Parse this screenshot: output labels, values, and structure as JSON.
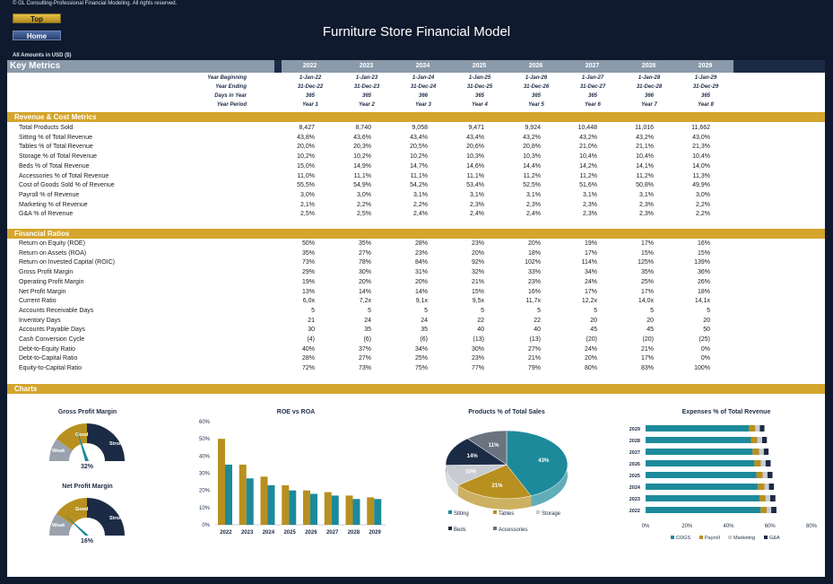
{
  "header": {
    "copyright": "© GL Consulting-Professional Financial Modeling. All rights reserved.",
    "top_button": "Top",
    "home_button": "Home",
    "title": "Furniture Store Financial Model",
    "amounts_note": "All Amounts in  USD ($)"
  },
  "key_metrics": {
    "label": "Key Metrics",
    "years": [
      "2022",
      "2023",
      "2024",
      "2025",
      "2026",
      "2027",
      "2028",
      "2029"
    ],
    "period_rows": [
      {
        "label": "Year Beginning",
        "values": [
          "1-Jan-22",
          "1-Jan-23",
          "1-Jan-24",
          "1-Jan-25",
          "1-Jan-26",
          "1-Jan-27",
          "1-Jan-28",
          "1-Jan-29"
        ]
      },
      {
        "label": "Year Ending",
        "values": [
          "31-Dec-22",
          "31-Dec-23",
          "31-Dec-24",
          "31-Dec-25",
          "31-Dec-26",
          "31-Dec-27",
          "31-Dec-28",
          "31-Dec-29"
        ]
      },
      {
        "label": "Days in Year",
        "values": [
          "365",
          "365",
          "366",
          "365",
          "365",
          "365",
          "366",
          "365"
        ]
      },
      {
        "label": "Year Period",
        "values": [
          "Year 1",
          "Year 2",
          "Year 3",
          "Year 4",
          "Year 5",
          "Year 6",
          "Year 7",
          "Year 8"
        ]
      }
    ]
  },
  "revenue": {
    "label": "Revenue & Cost Metrics",
    "rows": [
      {
        "label": "Total Products Sold",
        "values": [
          "8,427",
          "8,740",
          "9,058",
          "9,471",
          "9,924",
          "10,448",
          "11,016",
          "11,662"
        ]
      },
      {
        "label": "Sitting % of Total Revenue",
        "values": [
          "43,8%",
          "43,6%",
          "43,4%",
          "43,4%",
          "43,2%",
          "43,2%",
          "43,2%",
          "43,0%"
        ]
      },
      {
        "label": "Tables % of Total Revenue",
        "values": [
          "20,0%",
          "20,3%",
          "20,5%",
          "20,6%",
          "20,8%",
          "21,0%",
          "21,1%",
          "21,3%"
        ]
      },
      {
        "label": "Storage % of Total Revenue",
        "values": [
          "10,2%",
          "10,2%",
          "10,2%",
          "10,3%",
          "10,3%",
          "10,4%",
          "10,4%",
          "10,4%"
        ]
      },
      {
        "label": "Beds % of Total Revenue",
        "values": [
          "15,0%",
          "14,9%",
          "14,7%",
          "14,6%",
          "14,4%",
          "14,2%",
          "14,1%",
          "14,0%"
        ]
      },
      {
        "label": "Accessories % of Total Revenue",
        "values": [
          "11,0%",
          "11,1%",
          "11,1%",
          "11,1%",
          "11,2%",
          "11,2%",
          "11,2%",
          "11,3%"
        ]
      },
      {
        "label": "Cost of Goods Sold % of Revenue",
        "values": [
          "55,5%",
          "54,9%",
          "54,2%",
          "53,4%",
          "52,5%",
          "51,6%",
          "50,8%",
          "49,9%"
        ]
      },
      {
        "label": "Payroll % of Revenue",
        "values": [
          "3,0%",
          "3,0%",
          "3,1%",
          "3,1%",
          "3,1%",
          "3,1%",
          "3,1%",
          "3,0%"
        ]
      },
      {
        "label": "Marketing % of Revenue",
        "values": [
          "2,1%",
          "2,2%",
          "2,2%",
          "2,3%",
          "2,3%",
          "2,3%",
          "2,3%",
          "2,2%"
        ]
      },
      {
        "label": "G&A % of Revenue",
        "values": [
          "2,5%",
          "2,5%",
          "2,4%",
          "2,4%",
          "2,4%",
          "2,3%",
          "2,3%",
          "2,2%"
        ]
      }
    ]
  },
  "ratios": {
    "label": "Financial Ratios",
    "rows": [
      {
        "label": "Return on Equity (ROE)",
        "values": [
          "50%",
          "35%",
          "28%",
          "23%",
          "20%",
          "19%",
          "17%",
          "16%"
        ]
      },
      {
        "label": "Return on Assets (ROA)",
        "values": [
          "35%",
          "27%",
          "23%",
          "20%",
          "18%",
          "17%",
          "15%",
          "15%"
        ]
      },
      {
        "label": "Return on Invested Capital (ROIC)",
        "values": [
          "73%",
          "78%",
          "84%",
          "92%",
          "102%",
          "114%",
          "125%",
          "139%"
        ]
      },
      {
        "label": "Gross Profit Margin",
        "values": [
          "29%",
          "30%",
          "31%",
          "32%",
          "33%",
          "34%",
          "35%",
          "36%"
        ]
      },
      {
        "label": "Operating Profit Margin",
        "values": [
          "19%",
          "20%",
          "20%",
          "21%",
          "23%",
          "24%",
          "25%",
          "26%"
        ]
      },
      {
        "label": "Net Profit Margin",
        "values": [
          "13%",
          "14%",
          "14%",
          "15%",
          "16%",
          "17%",
          "17%",
          "18%"
        ]
      },
      {
        "label": "Current Ratio",
        "values": [
          "6,0x",
          "7,2x",
          "9,1x",
          "9,5x",
          "11,7x",
          "12,2x",
          "14,0x",
          "14,1x"
        ]
      },
      {
        "label": "Accounts Receivable Days",
        "values": [
          "5",
          "5",
          "5",
          "5",
          "5",
          "5",
          "5",
          "5"
        ]
      },
      {
        "label": "Inventory Days",
        "values": [
          "21",
          "24",
          "24",
          "22",
          "22",
          "20",
          "20",
          "20"
        ]
      },
      {
        "label": "Accounts Payable Days",
        "values": [
          "30",
          "35",
          "35",
          "40",
          "40",
          "45",
          "45",
          "50"
        ]
      },
      {
        "label": "Cash Conversion Cycle",
        "values": [
          "(4)",
          "(6)",
          "(6)",
          "(13)",
          "(13)",
          "(20)",
          "(20)",
          "(25)"
        ]
      },
      {
        "label": "Debt-to-Equity Ratio",
        "values": [
          "40%",
          "37%",
          "34%",
          "30%",
          "27%",
          "24%",
          "21%",
          "0%"
        ]
      },
      {
        "label": "Debt-to-Capital Ratio",
        "values": [
          "28%",
          "27%",
          "25%",
          "23%",
          "21%",
          "20%",
          "17%",
          "0%"
        ]
      },
      {
        "label": "Equity-to-Capital Ratio",
        "values": [
          "72%",
          "73%",
          "75%",
          "77%",
          "79%",
          "80%",
          "83%",
          "100%"
        ]
      }
    ]
  },
  "charts": {
    "label": "Charts",
    "gauges": [
      {
        "title": "Gross Profit Margin",
        "value_label": "32%",
        "value": 0.32,
        "zones": [
          "Weak",
          "Good",
          "Strong"
        ]
      },
      {
        "title": "Net Profit Margin",
        "value_label": "16%",
        "value": 0.16,
        "zones": [
          "Weak",
          "Good",
          "Strong"
        ]
      }
    ],
    "colors": {
      "gold": "#b8901f",
      "teal": "#1d8a9b",
      "navy": "#1c2b45",
      "grey": "#c8ccd2",
      "dark_teal": "#1a4a5a"
    }
  },
  "chart_data": [
    {
      "type": "bar",
      "title": "ROE vs ROA",
      "categories": [
        "2022",
        "2023",
        "2024",
        "2025",
        "2026",
        "2027",
        "2028",
        "2029"
      ],
      "series": [
        {
          "values": [
            50,
            35,
            28,
            23,
            20,
            19,
            17,
            16
          ]
        },
        {
          "values": [
            35,
            27,
            23,
            20,
            18,
            17,
            15,
            15
          ]
        }
      ],
      "ylim": [
        0,
        60
      ],
      "yticks": [
        "0%",
        "10%",
        "20%",
        "30%",
        "40%",
        "50%",
        "60%"
      ]
    },
    {
      "type": "pie",
      "title": "Products % of Total Sales",
      "labels": [
        "Sitting",
        "Tables",
        "Storage",
        "Beds",
        "Accessories"
      ],
      "values": [
        43,
        21,
        10,
        14,
        11
      ],
      "value_labels": [
        "43%",
        "21%",
        "10%",
        "14%",
        "11%"
      ]
    },
    {
      "type": "bar",
      "title": "Expenses % of Total Revenue",
      "orientation": "horizontal",
      "stacked": true,
      "categories": [
        "2029",
        "2028",
        "2027",
        "2026",
        "2025",
        "2024",
        "2023",
        "2022"
      ],
      "series": [
        {
          "name": "COGS",
          "values": [
            49.9,
            50.8,
            51.6,
            52.5,
            53.4,
            54.2,
            54.9,
            55.5
          ]
        },
        {
          "name": "Payroll",
          "values": [
            3.0,
            3.1,
            3.1,
            3.1,
            3.1,
            3.1,
            3.0,
            3.0
          ]
        },
        {
          "name": "Marketing",
          "values": [
            2.2,
            2.3,
            2.3,
            2.3,
            2.3,
            2.2,
            2.2,
            2.1
          ]
        },
        {
          "name": "G&A",
          "values": [
            2.2,
            2.3,
            2.3,
            2.4,
            2.4,
            2.4,
            2.5,
            2.5
          ]
        }
      ],
      "xlim": [
        0,
        80
      ],
      "xticks": [
        "0%",
        "20%",
        "40%",
        "60%",
        "80%"
      ]
    }
  ]
}
